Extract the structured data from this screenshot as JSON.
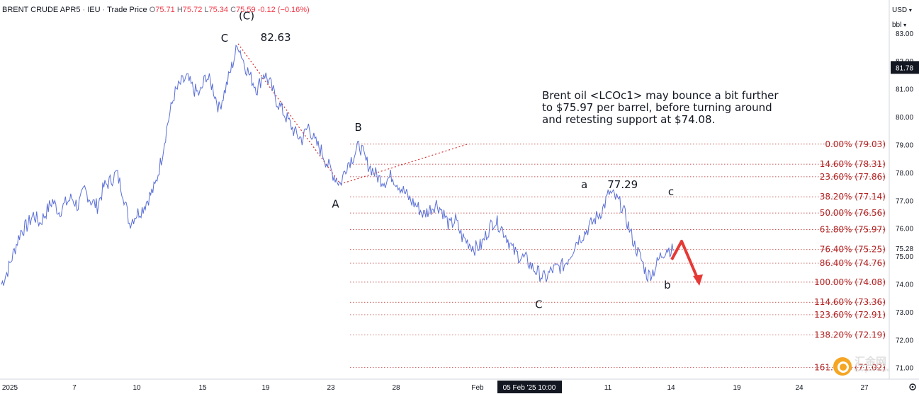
{
  "header": {
    "symbol": "BRENT CRUDE APR5",
    "exchange": "IEU",
    "price_type": "Trade Price",
    "o_label": "O",
    "open": "75.71",
    "h_label": "H",
    "high": "75.72",
    "l_label": "L",
    "low": "75.34",
    "c_label": "C",
    "close": "75.59",
    "change": "-0.12 (−0.16%)"
  },
  "axis_units": {
    "currency": "USD",
    "unit": "bbl"
  },
  "annotation": {
    "lines": [
      "Brent oil <LCOc1> may bounce a bit further",
      "to $75.97 per barrel, before turning around",
      "and retesting support at $74.08."
    ]
  },
  "watermark": {
    "text": "汇金网",
    "sub": "www.gold678.com"
  },
  "colors": {
    "price": "#5a6fd6",
    "fib": "#b22222",
    "trend": "#d32f2f",
    "arrow": "#e53935",
    "last_price_bg": "#131722",
    "crosshair_bg": "#131722"
  },
  "chart_data": {
    "type": "line",
    "title": "BRENT CRUDE APR5",
    "xlabel": "",
    "ylabel": "",
    "ylim": [
      70.6,
      84.2
    ],
    "y_ticks": [
      "83.00",
      "82.00",
      "81.00",
      "80.00",
      "79.00",
      "78.00",
      "77.00",
      "76.00",
      "75.00",
      "74.00",
      "73.00",
      "72.00",
      "71.00"
    ],
    "x_ticks": [
      "2025",
      "7",
      "10",
      "15",
      "19",
      "23",
      "28",
      "Feb",
      "11",
      "14",
      "19",
      "24",
      "27"
    ],
    "crosshair_label": "05 Feb '25  10:00",
    "last_price": "81.78",
    "current_price": "75.28",
    "series": [
      {
        "values": [
          74.0,
          74.5,
          75.2,
          75.9,
          76.1,
          76.5,
          76.2,
          76.6,
          77.0,
          76.6,
          76.9,
          77.1,
          76.8,
          77.4,
          77.0,
          76.8,
          77.5,
          77.7,
          78.0,
          77.3,
          76.2,
          76.5,
          76.7,
          77.1,
          77.5,
          78.5,
          79.8,
          80.8,
          81.2,
          81.4,
          81.0,
          80.8,
          81.5,
          81.1,
          80.3,
          81.0,
          81.8,
          82.63,
          81.9,
          81.4,
          81.0,
          81.6,
          81.2,
          80.6,
          80.2,
          79.8,
          79.4,
          79.2,
          79.7,
          79.1,
          78.8,
          78.3,
          77.9,
          77.6,
          78.3,
          78.6,
          79.0,
          78.4,
          78.1,
          77.8,
          77.7,
          77.9,
          77.6,
          77.3,
          77.0,
          76.8,
          76.5,
          76.7,
          76.9,
          76.6,
          76.1,
          76.3,
          75.7,
          75.5,
          75.3,
          75.4,
          75.9,
          76.3,
          76.1,
          75.7,
          75.2,
          75.0,
          74.9,
          74.6,
          74.4,
          74.2,
          74.5,
          74.6,
          74.7,
          75.1,
          75.6,
          75.8,
          76.1,
          76.4,
          76.7,
          77.29,
          77.1,
          76.8,
          76.1,
          75.4,
          74.9,
          74.3,
          74.5,
          75.0,
          75.3,
          75.2
        ]
      }
    ],
    "fib_levels": [
      {
        "label": "0.00% (79.03)",
        "y": 79.03
      },
      {
        "label": "14.60% (78.31)",
        "y": 78.31
      },
      {
        "label": "23.60% (77.86)",
        "y": 77.86
      },
      {
        "label": "38.20% (77.14)",
        "y": 77.14
      },
      {
        "label": "50.00% (76.56)",
        "y": 76.56
      },
      {
        "label": "61.80% (75.97)",
        "y": 75.97
      },
      {
        "label": "76.40% (75.25)",
        "y": 75.25
      },
      {
        "label": "86.40% (74.76)",
        "y": 74.76
      },
      {
        "label": "100.00% (74.08)",
        "y": 74.08
      },
      {
        "label": "114.60% (73.36)",
        "y": 73.36
      },
      {
        "label": "123.60% (72.91)",
        "y": 72.91
      },
      {
        "label": "138.20% (72.19)",
        "y": 72.19
      },
      {
        "label": "161.80% (71.02)",
        "y": 71.02
      }
    ],
    "wave_labels": [
      {
        "text": "(C)",
        "i": 37,
        "y": 83.1
      },
      {
        "text": "C",
        "i": 36,
        "y": 82.6
      },
      {
        "text": "82.63",
        "i": 40,
        "y": 82.63
      },
      {
        "text": "A",
        "i": 53,
        "y": 76.95
      },
      {
        "text": "B",
        "i": 56,
        "y": 79.3
      },
      {
        "text": "a",
        "i": 92,
        "y": 77.4
      },
      {
        "text": "77.29",
        "i": 96,
        "y": 77.4
      },
      {
        "text": "c",
        "i": 104,
        "y": 77.15
      },
      {
        "text": "C",
        "i": 84,
        "y": 73.4
      },
      {
        "text": "b",
        "i": 103,
        "y": 74.1
      }
    ]
  }
}
